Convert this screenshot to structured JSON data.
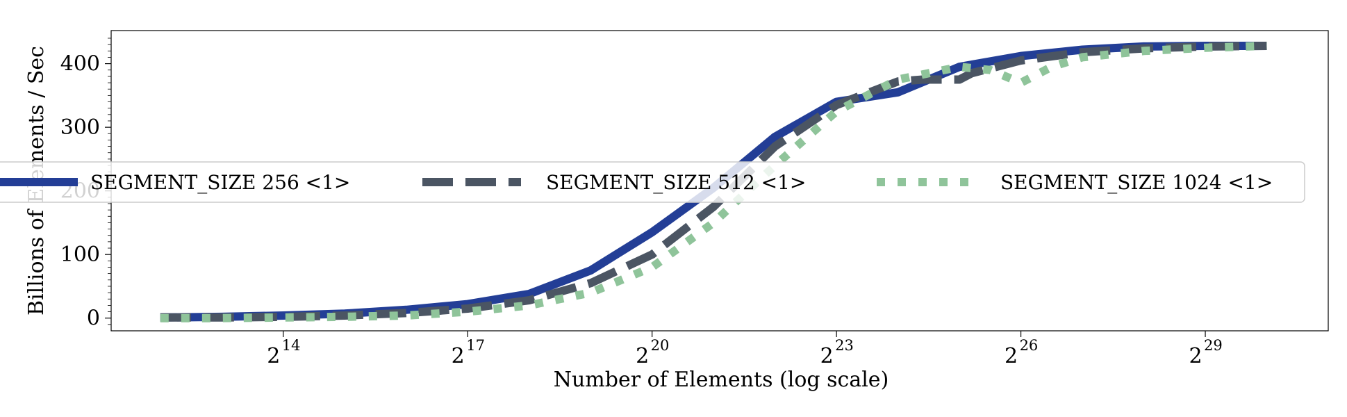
{
  "chart_data": {
    "type": "line",
    "xlabel": "Number of Elements (log scale)",
    "ylabel": "Billions of Elements / Sec",
    "x_scale": "log2",
    "x_tick_exponents": [
      14,
      17,
      20,
      23,
      26,
      29
    ],
    "x_tick_base": "2",
    "xlim_log2": [
      11.2,
      31
    ],
    "ylim": [
      -20,
      452
    ],
    "y_ticks": [
      0,
      100,
      200,
      300,
      400
    ],
    "grid": false,
    "legend_position": "center",
    "series": [
      {
        "name": "SEGMENT_SIZE 256 <1>",
        "color": "#233e96",
        "style": "solid",
        "x_log2": [
          12,
          13,
          14,
          15,
          16,
          17,
          18,
          19,
          20,
          21,
          22,
          23,
          24,
          25,
          26,
          27,
          28,
          29,
          30
        ],
        "values": [
          1,
          2,
          4,
          7,
          13,
          22,
          38,
          75,
          135,
          205,
          285,
          340,
          355,
          395,
          412,
          422,
          427,
          428,
          428
        ]
      },
      {
        "name": "SEGMENT_SIZE 512 <1>",
        "color": "#4b5563",
        "style": "dashed",
        "x_log2": [
          12,
          13,
          14,
          15,
          16,
          17,
          18,
          19,
          20,
          21,
          22,
          23,
          24,
          24.4,
          25,
          25.2,
          25.6,
          26,
          27,
          28,
          29,
          30
        ],
        "values": [
          1,
          1,
          2,
          4,
          8,
          15,
          28,
          55,
          100,
          175,
          270,
          335,
          372,
          375,
          375,
          385,
          395,
          405,
          418,
          424,
          427,
          428
        ]
      },
      {
        "name": "SEGMENT_SIZE 1024 <1>",
        "color": "#8fc49a",
        "style": "dotted",
        "x_log2": [
          12,
          13,
          14,
          15,
          16,
          17,
          18,
          19,
          20,
          21,
          22,
          23,
          24,
          25,
          25.5,
          26,
          26.5,
          27,
          28,
          29,
          30
        ],
        "values": [
          0,
          0,
          1,
          2,
          4,
          10,
          20,
          40,
          80,
          150,
          240,
          325,
          375,
          395,
          390,
          370,
          395,
          410,
          420,
          425,
          428
        ]
      }
    ]
  }
}
